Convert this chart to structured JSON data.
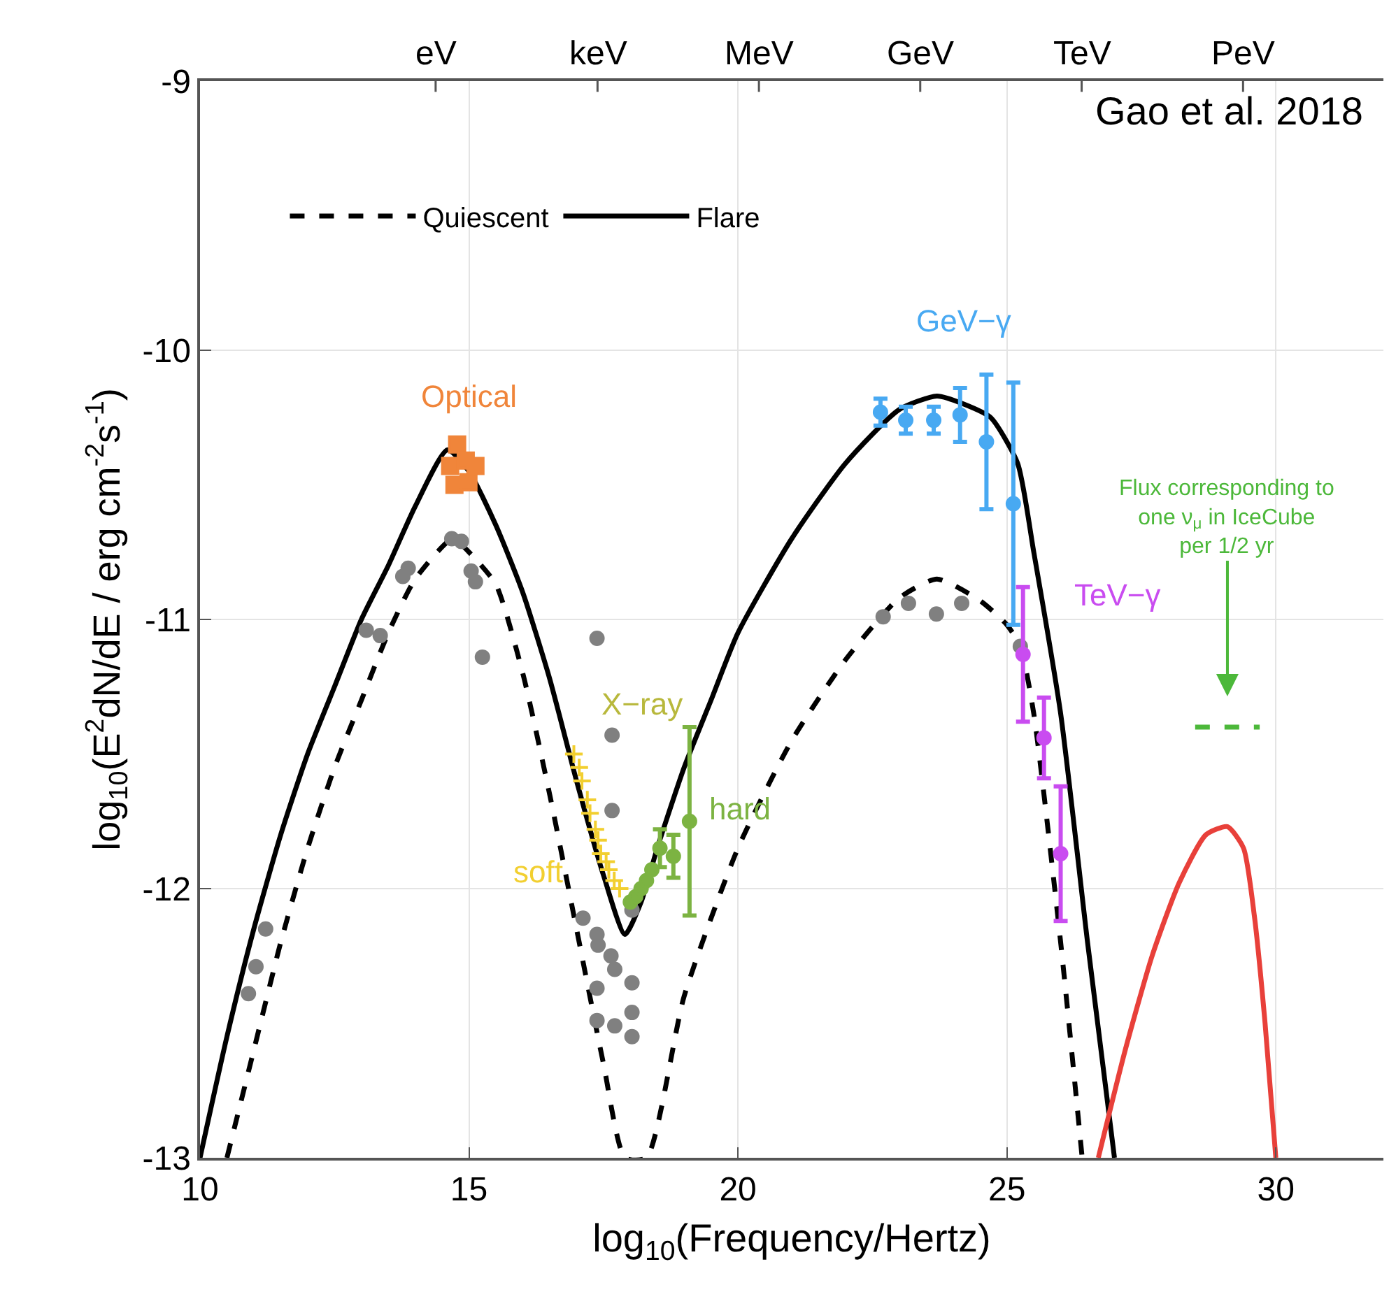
{
  "chart_data": {
    "type": "line",
    "xlabel": "log$_{10}$(Frequency/Hertz)",
    "ylabel": "log$_{10}$(E$^{2}$dN/dE / erg cm$^{-2}$s$^{-1}$)",
    "xlim": [
      10,
      32
    ],
    "xticks": [
      10,
      15,
      20,
      25,
      30
    ],
    "ylim": [
      -13,
      -9
    ],
    "yticks": [
      -13,
      -12,
      -11,
      -10,
      -9
    ],
    "grid": true,
    "legend": "top left",
    "annotations": [
      "Gao et al. 2018",
      "X−ray",
      "eV",
      "keV",
      "MeV",
      "GeV",
      "TeV",
      "PeV"
    ],
    "series": [
      {
        "name": "Quiescent",
        "color": "#000000",
        "line_style": "dashed",
        "x": [
          10.5,
          11,
          11.5,
          12,
          12.5,
          13,
          13.5,
          14,
          14.7,
          15,
          15.5,
          16,
          16.5,
          17,
          17.5,
          17.9,
          18.3,
          19,
          20,
          21,
          22,
          23,
          23.7,
          24.5,
          25,
          25.25,
          25.5,
          26,
          26.4
        ],
        "values": [
          -13,
          -12.6,
          -12.2,
          -11.85,
          -11.55,
          -11.3,
          -11.05,
          -10.85,
          -10.7,
          -10.75,
          -10.87,
          -11.2,
          -11.65,
          -12.15,
          -12.65,
          -13,
          -13,
          -12.4,
          -11.85,
          -11.45,
          -11.15,
          -10.92,
          -10.85,
          -10.93,
          -11.02,
          -11.1,
          -11.35,
          -12.2,
          -13
        ]
      },
      {
        "name": "Flare",
        "color": "#000000",
        "line_style": "solid",
        "x": [
          10,
          10.5,
          11,
          11.5,
          12,
          12.5,
          13,
          13.5,
          14,
          14.6,
          15,
          15.5,
          16,
          16.5,
          17,
          17.5,
          17.9,
          18.2,
          18.5,
          19,
          19.5,
          20,
          21,
          22,
          23,
          23.7,
          24.2,
          24.7,
          25.2,
          25.5,
          26,
          26.5,
          27
        ],
        "values": [
          -13,
          -12.55,
          -12.15,
          -11.8,
          -11.5,
          -11.25,
          -11,
          -10.8,
          -10.58,
          -10.37,
          -10.45,
          -10.65,
          -10.9,
          -11.22,
          -11.6,
          -11.95,
          -12.17,
          -12.05,
          -11.85,
          -11.55,
          -11.3,
          -11.05,
          -10.7,
          -10.42,
          -10.22,
          -10.17,
          -10.2,
          -10.25,
          -10.42,
          -10.75,
          -11.35,
          -12.2,
          -13
        ]
      },
      {
        "color": "#e8403a",
        "line_style": "solid",
        "x": [
          26.7,
          27.2,
          27.7,
          28.2,
          28.7,
          29.1,
          29.4,
          29.6,
          29.8,
          30
        ],
        "values": [
          -13,
          -12.6,
          -12.25,
          -11.98,
          -11.8,
          -11.77,
          -11.85,
          -12.1,
          -12.5,
          -13
        ]
      },
      {
        "name": "Flux corresponding to\none ν$_{μ}$ in IceCube\nper 1/2 yr",
        "color": "#4cb83a",
        "line_style": "dashed",
        "x": [
          28.5,
          29.7
        ],
        "values": [
          -11.4,
          -11.4
        ]
      },
      {
        "type": "scatter",
        "color": "#808080",
        "marker": "circle",
        "x": [
          10.9,
          11.04,
          11.22,
          13.09,
          13.35,
          13.77,
          13.87,
          14.68,
          14.86,
          15.04,
          15.12,
          15.25,
          17.38,
          17.66,
          17.66,
          18.03,
          17.12,
          17.38,
          17.4,
          17.64,
          17.71,
          17.38,
          18.03,
          17.38,
          17.71,
          18.03,
          18.03,
          22.7,
          23.17,
          23.69,
          24.16,
          25.25
        ],
        "values": [
          -12.39,
          -12.29,
          -12.15,
          -11.04,
          -11.06,
          -10.84,
          -10.81,
          -10.7,
          -10.71,
          -10.82,
          -10.86,
          -11.14,
          -11.07,
          -11.43,
          -11.71,
          -12.08,
          -12.11,
          -12.17,
          -12.21,
          -12.25,
          -12.3,
          -12.37,
          -12.35,
          -12.49,
          -12.51,
          -12.46,
          -12.55,
          -10.99,
          -10.94,
          -10.98,
          -10.94,
          -11.1
        ]
      },
      {
        "name": "Optical",
        "type": "scatter",
        "color": "#f0853a",
        "marker": "square",
        "x": [
          14.78,
          14.65,
          14.94,
          15.12,
          14.73,
          14.99
        ],
        "values": [
          -10.35,
          -10.43,
          -10.41,
          -10.43,
          -10.5,
          -10.49
        ]
      },
      {
        "name": "soft",
        "type": "scatter",
        "color": "#f2cf30",
        "marker": "cross",
        "x": [
          16.95,
          17.05,
          17.1,
          17.2,
          17.25,
          17.35,
          17.4,
          17.45,
          17.55,
          17.6,
          17.7,
          17.8
        ],
        "values": [
          -11.5,
          -11.55,
          -11.6,
          -11.67,
          -11.72,
          -11.78,
          -11.82,
          -11.87,
          -11.9,
          -11.93,
          -11.97,
          -12
        ]
      },
      {
        "name": "hard",
        "type": "scatter",
        "color": "#7cb342",
        "marker": "circle",
        "x": [
          18,
          18.1,
          18.2,
          18.3,
          18.4,
          18.55,
          18.8,
          19.1
        ],
        "values": [
          -12.05,
          -12.03,
          -12,
          -11.97,
          -11.93,
          -11.85,
          -11.88,
          -11.75
        ],
        "errors": [
          null,
          null,
          null,
          null,
          null,
          0.07,
          0.08,
          0.35
        ]
      },
      {
        "name": "GeV−γ",
        "type": "scatter",
        "color": "#48a9f2",
        "marker": "circle",
        "x": [
          22.65,
          23.12,
          23.64,
          24.13,
          24.62,
          25.12
        ],
        "values": [
          -10.23,
          -10.26,
          -10.26,
          -10.24,
          -10.34,
          -10.57
        ],
        "errors": [
          0.05,
          0.05,
          0.05,
          0.1,
          0.25,
          0.45
        ]
      },
      {
        "name": "TeV−γ",
        "type": "scatter",
        "color": "#c94cf0",
        "marker": "circle",
        "x": [
          25.3,
          25.69,
          26
        ],
        "values": [
          -11.13,
          -11.44,
          -11.87
        ],
        "errors": [
          0.25,
          0.15,
          0.25
        ]
      }
    ]
  }
}
